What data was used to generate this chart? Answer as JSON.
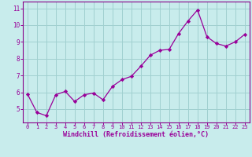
{
  "x": [
    0,
    1,
    2,
    3,
    4,
    5,
    6,
    7,
    8,
    9,
    10,
    11,
    12,
    13,
    14,
    15,
    16,
    17,
    18,
    19,
    20,
    21,
    22,
    23
  ],
  "y": [
    5.9,
    4.8,
    4.6,
    5.85,
    6.05,
    5.45,
    5.85,
    5.95,
    5.55,
    6.35,
    6.75,
    6.95,
    7.55,
    8.2,
    8.5,
    8.55,
    9.5,
    10.25,
    10.9,
    9.3,
    8.9,
    8.75,
    9.0,
    9.45
  ],
  "line_color": "#990099",
  "marker": "D",
  "marker_size": 2.2,
  "background_color": "#c8ecec",
  "grid_color": "#a0d0d0",
  "xlabel": "Windchill (Refroidissement éolien,°C)",
  "xlabel_color": "#990099",
  "tick_color": "#990099",
  "spine_color": "#880088",
  "ylim": [
    4.2,
    11.4
  ],
  "xlim": [
    -0.5,
    23.5
  ],
  "yticks": [
    5,
    6,
    7,
    8,
    9,
    10,
    11
  ],
  "xticks": [
    0,
    1,
    2,
    3,
    4,
    5,
    6,
    7,
    8,
    9,
    10,
    11,
    12,
    13,
    14,
    15,
    16,
    17,
    18,
    19,
    20,
    21,
    22,
    23
  ],
  "ylabel_fontsize": 5.5,
  "xlabel_fontsize": 6.0,
  "xtick_fontsize": 5.0,
  "ytick_fontsize": 5.5
}
